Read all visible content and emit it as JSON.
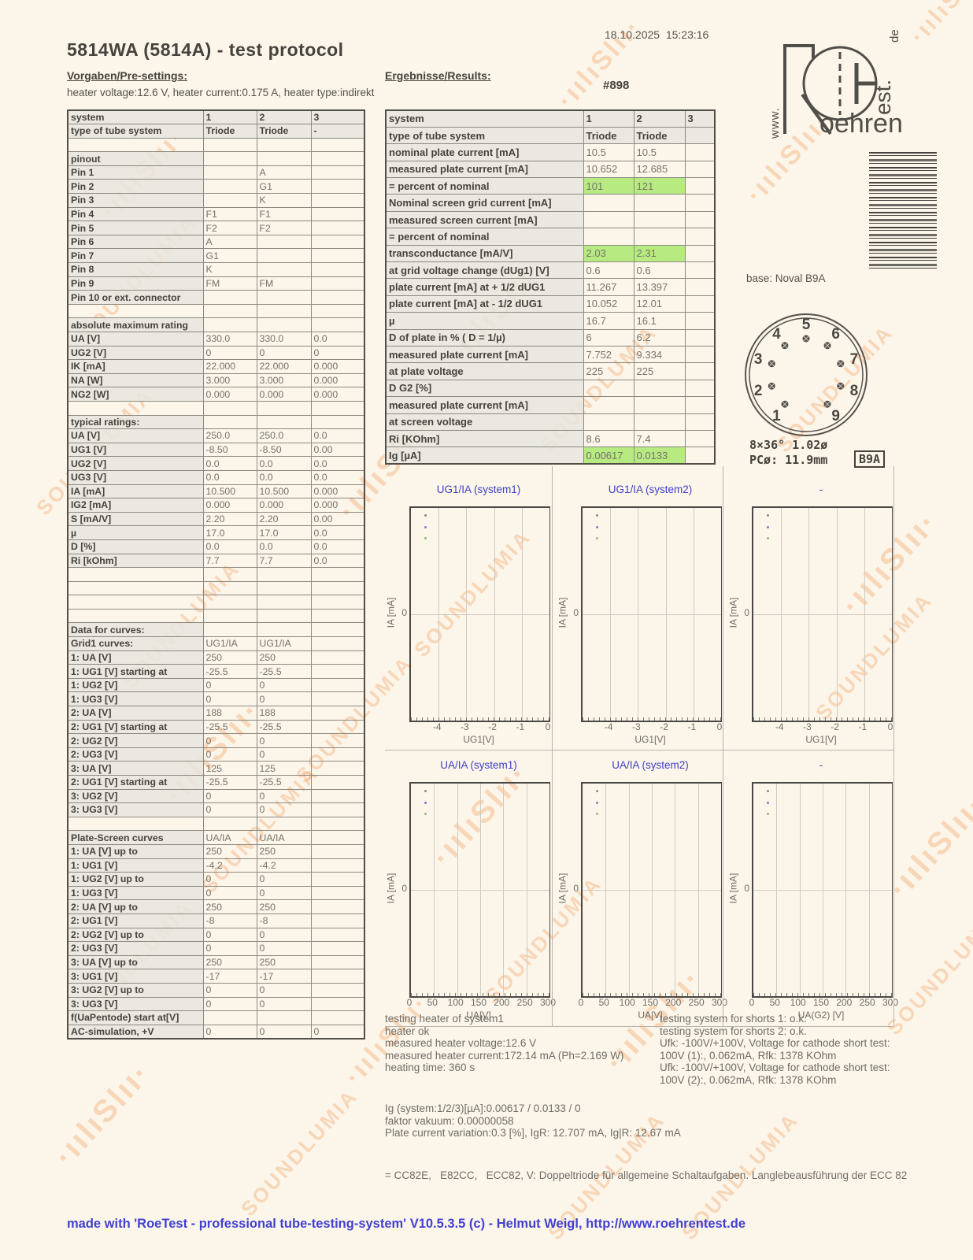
{
  "meta": {
    "title": "5814WA (5814A)  -  test protocol",
    "datetime": "18.10.2025  15:23:16",
    "serial": "#898",
    "presettings_heading": "Vorgaben/Pre-settings:",
    "results_heading": "Ergebnisse/Results:",
    "heater_line": "heater voltage:12.6 V, heater current:0.175 A, heater type:indirekt"
  },
  "logo": {
    "text_main": "oehren",
    "text_est": "est.",
    "text_de": "de",
    "text_www": "www."
  },
  "colors": {
    "highlight_green": "#b1e876",
    "chart_title_blue": "#4040c8",
    "footer_blue": "#4141d0",
    "watermark_orange": "#f3a871"
  },
  "pre_table": {
    "rows": [
      {
        "l": "system",
        "c": [
          "1",
          "2",
          "3"
        ],
        "hdr": true
      },
      {
        "l": "type of tube system",
        "c": [
          "Triode",
          "Triode",
          "-"
        ],
        "hdr": true
      },
      {
        "l": "",
        "c": [
          "",
          "",
          ""
        ]
      },
      {
        "l": "pinout",
        "c": [
          "",
          "",
          ""
        ]
      },
      {
        "l": "Pin 1",
        "c": [
          "",
          "A",
          ""
        ]
      },
      {
        "l": "Pin 2",
        "c": [
          "",
          "G1",
          ""
        ]
      },
      {
        "l": "Pin 3",
        "c": [
          "",
          "K",
          ""
        ]
      },
      {
        "l": "Pin 4",
        "c": [
          "F1",
          "F1",
          ""
        ]
      },
      {
        "l": "Pin 5",
        "c": [
          "F2",
          "F2",
          ""
        ]
      },
      {
        "l": "Pin 6",
        "c": [
          "A",
          "",
          ""
        ]
      },
      {
        "l": "Pin 7",
        "c": [
          "G1",
          "",
          ""
        ]
      },
      {
        "l": "Pin 8",
        "c": [
          "K",
          "",
          ""
        ]
      },
      {
        "l": "Pin 9",
        "c": [
          "FM",
          "FM",
          ""
        ]
      },
      {
        "l": "Pin 10 or ext. connector",
        "c": [
          "",
          "",
          ""
        ]
      },
      {
        "l": "",
        "c": [
          "",
          "",
          ""
        ]
      },
      {
        "l": "absolute maximum rating",
        "c": [
          "",
          "",
          ""
        ]
      },
      {
        "l": "UA [V]",
        "c": [
          "330.0",
          "330.0",
          "0.0"
        ]
      },
      {
        "l": "UG2 [V]",
        "c": [
          "0",
          "0",
          "0"
        ]
      },
      {
        "l": "IK [mA]",
        "c": [
          "22.000",
          "22.000",
          "0.000"
        ]
      },
      {
        "l": "NA [W]",
        "c": [
          "3.000",
          "3.000",
          "0.000"
        ]
      },
      {
        "l": "NG2 [W]",
        "c": [
          "0.000",
          "0.000",
          "0.000"
        ]
      },
      {
        "l": "",
        "c": [
          "",
          "",
          ""
        ]
      },
      {
        "l": "typical ratings:",
        "c": [
          "",
          "",
          ""
        ]
      },
      {
        "l": "UA [V]",
        "c": [
          "250.0",
          "250.0",
          "0.0"
        ]
      },
      {
        "l": "UG1 [V]",
        "c": [
          "-8.50",
          "-8.50",
          "0.00"
        ]
      },
      {
        "l": "UG2 [V]",
        "c": [
          "0.0",
          "0.0",
          "0.0"
        ]
      },
      {
        "l": "UG3 [V]",
        "c": [
          "0.0",
          "0.0",
          "0.0"
        ]
      },
      {
        "l": "IA [mA]",
        "c": [
          "10.500",
          "10.500",
          "0.000"
        ]
      },
      {
        "l": "IG2 [mA]",
        "c": [
          "0.000",
          "0.000",
          "0.000"
        ]
      },
      {
        "l": "S [mA/V]",
        "c": [
          "2.20",
          "2.20",
          "0.00"
        ]
      },
      {
        "l": "µ",
        "c": [
          "17.0",
          "17.0",
          "0.0"
        ]
      },
      {
        "l": "D [%]",
        "c": [
          "0.0",
          "0.0",
          "0.0"
        ]
      },
      {
        "l": "Ri [kOhm]",
        "c": [
          "7.7",
          "7.7",
          "0.0"
        ]
      },
      {
        "l": "",
        "c": [
          "",
          "",
          ""
        ]
      },
      {
        "l": "",
        "c": [
          "",
          "",
          ""
        ]
      },
      {
        "l": "",
        "c": [
          "",
          "",
          ""
        ]
      },
      {
        "l": "",
        "c": [
          "",
          "",
          ""
        ]
      },
      {
        "l": "Data for curves:",
        "c": [
          "",
          "",
          ""
        ]
      },
      {
        "l": "Grid1 curves:",
        "c": [
          "UG1/IA",
          "UG1/IA",
          ""
        ]
      },
      {
        "l": "1: UA [V]",
        "c": [
          "250",
          "250",
          ""
        ]
      },
      {
        "l": "1: UG1 [V] starting at",
        "c": [
          "-25.5",
          "-25.5",
          ""
        ]
      },
      {
        "l": "1: UG2 [V]",
        "c": [
          "0",
          "0",
          ""
        ]
      },
      {
        "l": "1: UG3 [V]",
        "c": [
          "0",
          "0",
          ""
        ]
      },
      {
        "l": "2: UA [V]",
        "c": [
          "188",
          "188",
          ""
        ]
      },
      {
        "l": "2: UG1 [V] starting at",
        "c": [
          "-25.5",
          "-25.5",
          ""
        ]
      },
      {
        "l": "2: UG2 [V]",
        "c": [
          "0",
          "0",
          ""
        ]
      },
      {
        "l": "2: UG3 [V]",
        "c": [
          "0",
          "0",
          ""
        ]
      },
      {
        "l": "3: UA [V]",
        "c": [
          "125",
          "125",
          ""
        ]
      },
      {
        "l": "2: UG1 [V] starting at",
        "c": [
          "-25.5",
          "-25.5",
          ""
        ]
      },
      {
        "l": "3: UG2 [V]",
        "c": [
          "0",
          "0",
          ""
        ]
      },
      {
        "l": "3: UG3 [V]",
        "c": [
          "0",
          "0",
          ""
        ]
      },
      {
        "l": "",
        "c": [
          "",
          "",
          ""
        ]
      },
      {
        "l": "Plate-Screen curves",
        "c": [
          "UA/IA",
          "UA/IA",
          ""
        ]
      },
      {
        "l": "1: UA [V] up to",
        "c": [
          "250",
          "250",
          ""
        ]
      },
      {
        "l": "1: UG1 [V]",
        "c": [
          "-4.2",
          "-4.2",
          ""
        ]
      },
      {
        "l": "1: UG2 [V] up to",
        "c": [
          "0",
          "0",
          ""
        ]
      },
      {
        "l": "1: UG3 [V]",
        "c": [
          "0",
          "0",
          ""
        ]
      },
      {
        "l": "2: UA [V] up to",
        "c": [
          "250",
          "250",
          ""
        ]
      },
      {
        "l": "2: UG1 [V]",
        "c": [
          "-8",
          "-8",
          ""
        ]
      },
      {
        "l": "2: UG2 [V] up to",
        "c": [
          "0",
          "0",
          ""
        ]
      },
      {
        "l": "2: UG3 [V]",
        "c": [
          "0",
          "0",
          ""
        ]
      },
      {
        "l": "3: UA [V] up to",
        "c": [
          "250",
          "250",
          ""
        ]
      },
      {
        "l": "3: UG1 [V]",
        "c": [
          "-17",
          "-17",
          ""
        ]
      },
      {
        "l": "3: UG2 [V] up to",
        "c": [
          "0",
          "0",
          ""
        ]
      },
      {
        "l": "3: UG3 [V]",
        "c": [
          "0",
          "0",
          ""
        ]
      },
      {
        "l": "f(UaPentode) start at[V]",
        "c": [
          "",
          "",
          ""
        ]
      },
      {
        "l": "AC-simulation, +V",
        "c": [
          "0",
          "0",
          "0"
        ]
      }
    ]
  },
  "results_table": {
    "rows": [
      {
        "l": "system",
        "c": [
          "1",
          "2",
          "3"
        ],
        "hdr": true
      },
      {
        "l": "type of tube system",
        "c": [
          "Triode",
          "Triode",
          ""
        ],
        "hdr": true
      },
      {
        "l": "nominal plate current [mA]",
        "c": [
          "10.5",
          "10.5",
          ""
        ]
      },
      {
        "l": "measured plate current [mA]",
        "c": [
          "10.652",
          "12.685",
          ""
        ]
      },
      {
        "l": "= percent of nominal",
        "c": [
          "101",
          "121",
          ""
        ],
        "g": [
          1,
          1,
          0
        ]
      },
      {
        "l": "Nominal screen grid current [mA]",
        "c": [
          "",
          "",
          ""
        ]
      },
      {
        "l": "measured screen current [mA]",
        "c": [
          "",
          "",
          ""
        ]
      },
      {
        "l": "= percent of nominal",
        "c": [
          "",
          "",
          ""
        ]
      },
      {
        "l": "transconductance [mA/V]",
        "c": [
          "2.03",
          "2.31",
          ""
        ],
        "g": [
          1,
          1,
          0
        ]
      },
      {
        "l": "at grid voltage change (dUg1) [V]",
        "c": [
          "0.6",
          "0.6",
          ""
        ]
      },
      {
        "l": "plate current [mA] at + 1/2 dUG1",
        "c": [
          "11.267",
          "13.397",
          ""
        ]
      },
      {
        "l": "plate current [mA] at - 1/2 dUG1",
        "c": [
          "10.052",
          "12.01",
          ""
        ]
      },
      {
        "l": "µ",
        "c": [
          "16.7",
          "16.1",
          ""
        ]
      },
      {
        "l": "D of plate in % ( D = 1/µ)",
        "c": [
          "6",
          "6.2",
          ""
        ]
      },
      {
        "l": "measured plate current [mA]",
        "c": [
          "7.752",
          "9.334",
          ""
        ]
      },
      {
        "l": "at plate voltage",
        "c": [
          "225",
          "225",
          ""
        ]
      },
      {
        "l": "D G2 [%]",
        "c": [
          "",
          "",
          ""
        ]
      },
      {
        "l": "measured plate current [mA]",
        "c": [
          "",
          "",
          ""
        ]
      },
      {
        "l": "at screen voltage",
        "c": [
          "",
          "",
          ""
        ]
      },
      {
        "l": "Ri [KOhm]",
        "c": [
          "8.6",
          "7.4",
          ""
        ]
      },
      {
        "l": "Ig [µA]",
        "c": [
          "0.00617",
          "0.0133",
          ""
        ],
        "g": [
          1,
          1,
          0
        ]
      }
    ]
  },
  "base": {
    "label": "base: Noval B9A",
    "pins": [
      1,
      2,
      3,
      4,
      5,
      6,
      7,
      8,
      9
    ],
    "dim_line1": "8×36° 1.02ø",
    "dim_line2": "PCø: 11.9mm",
    "base_code": "B9A"
  },
  "chart_data": [
    {
      "type": "scatter",
      "title": "UG1/IA (system1)",
      "xlabel": "UG1[V]",
      "ylabel": "IA [mA]",
      "xlim": [
        -5,
        0
      ],
      "x_ticks": [
        -4,
        -3,
        -2,
        -1,
        0
      ],
      "y_zero_tick": "0",
      "legend_dot_colors": [
        "#8a8a86",
        "#7d7dc4",
        "#8fbc74"
      ],
      "series": [],
      "grid": true
    },
    {
      "type": "scatter",
      "title": "UG1/IA (system2)",
      "xlabel": "UG1[V]",
      "ylabel": "IA [mA]",
      "xlim": [
        -5,
        0
      ],
      "x_ticks": [
        -4,
        -3,
        -2,
        -1,
        0
      ],
      "y_zero_tick": "0",
      "legend_dot_colors": [
        "#8a8a86",
        "#7d7dc4",
        "#8fbc74"
      ],
      "series": [],
      "grid": true
    },
    {
      "type": "scatter",
      "title": "-",
      "xlabel": "UG1[V]",
      "ylabel": "IA [mA]",
      "xlim": [
        -5,
        0
      ],
      "x_ticks": [
        -4,
        -3,
        -2,
        -1,
        0
      ],
      "y_zero_tick": "0",
      "legend_dot_colors": [
        "#8a8a86",
        "#7d7dc4",
        "#8fbc74"
      ],
      "series": [],
      "grid": true
    },
    {
      "type": "scatter",
      "title": "UA/IA (system1)",
      "xlabel": "UA[V]",
      "ylabel": "IA [mA]",
      "xlim": [
        0,
        300
      ],
      "x_ticks": [
        0,
        50,
        100,
        150,
        200,
        250,
        300
      ],
      "y_zero_tick": "0",
      "legend_dot_colors": [
        "#8a8a86",
        "#7d7dc4",
        "#8fbc74"
      ],
      "series": [],
      "grid": true
    },
    {
      "type": "scatter",
      "title": "UA/IA (system2)",
      "xlabel": "UA[V]",
      "ylabel": "IA [mA]",
      "xlim": [
        0,
        300
      ],
      "x_ticks": [
        0,
        50,
        100,
        150,
        200,
        250,
        300
      ],
      "y_zero_tick": "0",
      "legend_dot_colors": [
        "#8a8a86",
        "#7d7dc4",
        "#8fbc74"
      ],
      "series": [],
      "grid": true
    },
    {
      "type": "scatter",
      "title": "-",
      "xlabel": "UA(G2) [V]",
      "ylabel": "IA [mA]",
      "xlim": [
        0,
        300
      ],
      "x_ticks": [
        0,
        50,
        100,
        150,
        200,
        250,
        300
      ],
      "y_zero_tick": "0",
      "legend_dot_colors": [
        "#8a8a86",
        "#7d7dc4",
        "#8fbc74"
      ],
      "series": [],
      "grid": true
    }
  ],
  "notes_left": {
    "lines": [
      "testing heater of system1",
      "heater ok",
      "measured heater voltage:12.6 V",
      "measured heater current:172.14 mA (Ph=2.169 W)",
      "heating time: 360 s"
    ]
  },
  "notes_right": {
    "lines": [
      "testing system for shorts 1: o.k.",
      "testing system for shorts 2: o.k.",
      "Ufk: -100V/+100V, Voltage for cathode short test:",
      "100V (1):, 0.062mA, Rfk: 1378 KOhm",
      "Ufk: -100V/+100V, Voltage for cathode short test:",
      "100V (2):, 0.062mA, Rfk: 1378 KOhm"
    ]
  },
  "notes_bottom": {
    "lines": [
      "Ig (system:1/2/3)[µA]:0.00617 / 0.0133 / 0",
      "faktor vakuum: 0.00000058",
      "Plate current variation:0.3 [%], IgR: 12.707 mA, Ig|R: 12.67 mA"
    ]
  },
  "equiv_line": "= CC82E,   E82CC,   ECC82, V: Doppeltriode für allgemeine Schaltaufgaben. Langlebeausführung der ECC 82",
  "footer": "made with 'RoeTest - professional tube-testing-system' V10.5.3.5 (c) - Helmut Weigl, http://www.roehrentest.de",
  "watermark": {
    "text": "SOUNDLUMIA",
    "squiggle": "·ıılıSlıı·"
  }
}
